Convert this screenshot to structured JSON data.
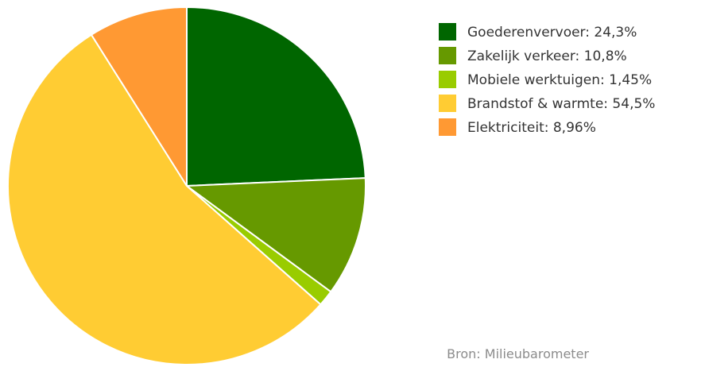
{
  "chart_data": {
    "type": "pie",
    "title": "",
    "slices": [
      {
        "label": "Goederenvervoer: 24,3%",
        "value": 24.3,
        "color": "#006600"
      },
      {
        "label": "Zakelijk verkeer: 10,8%",
        "value": 10.8,
        "color": "#669900"
      },
      {
        "label": "Mobiele werktuigen: 1,45%",
        "value": 1.45,
        "color": "#99cc00"
      },
      {
        "label": "Brandstof & warmte: 54,5%",
        "value": 54.5,
        "color": "#ffcc33"
      },
      {
        "label": "Elektriciteit: 8,96%",
        "value": 8.96,
        "color": "#ff9933"
      }
    ],
    "start_angle": "top (12 o'clock), clockwise",
    "legend_placement": "top-right",
    "source": "Bron: Milieubarometer"
  }
}
